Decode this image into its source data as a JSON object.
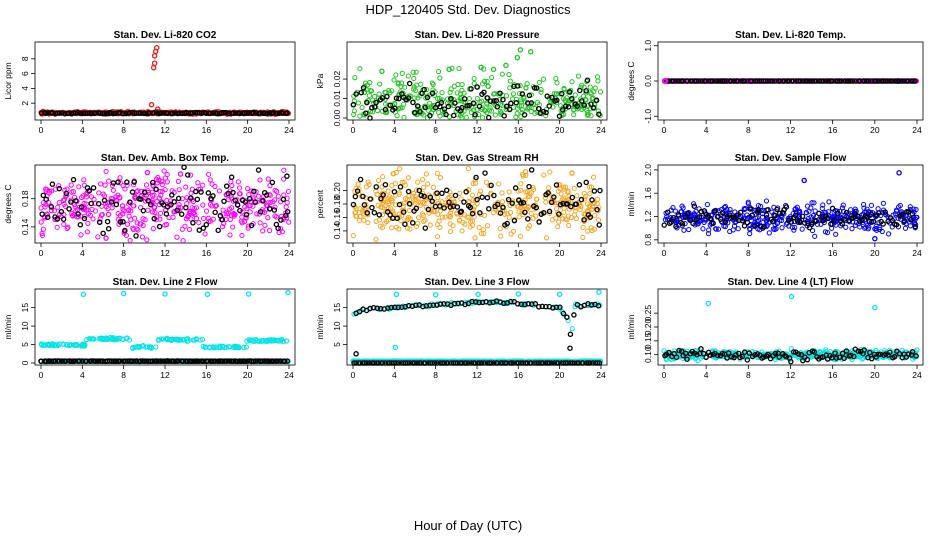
{
  "figure": {
    "title": "HDP_120405  Std. Dev. Diagnostics",
    "xlabel": "Hour of Day (UTC)"
  },
  "chart_data": [
    {
      "type": "scatter",
      "title": "Stan. Dev. Li-820 CO2",
      "ylabel": "Licor ppm",
      "xlim": [
        0,
        24
      ],
      "ylim": [
        0,
        10
      ],
      "xticks": [
        "0",
        "4",
        "8",
        "12",
        "16",
        "20",
        "24"
      ],
      "yticks": [
        "2",
        "4",
        "6",
        "8"
      ],
      "ytick_values": [
        2,
        4,
        6,
        8
      ],
      "series": [
        {
          "color": "#e41a1c",
          "base": 0.7,
          "noise": 0.08,
          "outliers": [
            [
              0.2,
              0.9
            ],
            [
              10.7,
              1.8
            ],
            [
              10.9,
              6.8
            ],
            [
              11.0,
              7.4
            ],
            [
              11.0,
              8.4
            ],
            [
              11.1,
              9.0
            ],
            [
              11.2,
              9.5
            ],
            [
              11.3,
              1.2
            ]
          ]
        },
        {
          "color": "#000000",
          "base": 0.65,
          "noise": 0.04,
          "outliers": []
        }
      ]
    },
    {
      "type": "scatter",
      "title": "Stan. Dev. Li-820 Pressure",
      "ylabel": "kPa",
      "xlim": [
        0,
        24
      ],
      "ylim": [
        0,
        0.038
      ],
      "xticks": [
        "0",
        "4",
        "8",
        "12",
        "16",
        "20",
        "24"
      ],
      "yticks": [
        "0.00",
        "0.01",
        "0.02"
      ],
      "ytick_values": [
        0,
        0.01,
        0.02
      ],
      "series": [
        {
          "color": "#22c322",
          "base": 0.008,
          "noise": 0.007,
          "outliers": [
            [
              2.8,
              0.024
            ],
            [
              9.3,
              0.025
            ],
            [
              12.4,
              0.026
            ],
            [
              13.6,
              0.025
            ],
            [
              14.8,
              0.027
            ],
            [
              15.9,
              0.031
            ],
            [
              16.2,
              0.035
            ],
            [
              17.2,
              0.034
            ]
          ]
        },
        {
          "color": "#000000",
          "base": 0.008,
          "noise": 0.005,
          "outliers": []
        }
      ]
    },
    {
      "type": "scatter",
      "title": "Stan. Dev. Li-820 Temp.",
      "ylabel": "degrees C",
      "xlim": [
        0,
        24
      ],
      "ylim": [
        -1.05,
        1.05
      ],
      "xticks": [
        "0",
        "4",
        "8",
        "12",
        "16",
        "20",
        "24"
      ],
      "yticks": [
        "-1.0",
        "0.0",
        "1.0"
      ],
      "ytick_values": [
        -1,
        0,
        1
      ],
      "series": [
        {
          "color": "#ff00ff",
          "base": 0.0,
          "noise": 0.0,
          "outliers": []
        },
        {
          "color": "#000000",
          "base": 0.0,
          "noise": 0.0,
          "outliers": []
        }
      ]
    },
    {
      "type": "scatter",
      "title": "Stan. Dev. Amb. Box Temp.",
      "ylabel": "degrees C",
      "xlim": [
        0,
        24
      ],
      "ylim": [
        0.12,
        0.225
      ],
      "xticks": [
        "0",
        "4",
        "8",
        "12",
        "16",
        "20",
        "24"
      ],
      "yticks": [
        "0.14",
        "0.18"
      ],
      "ytick_values": [
        0.14,
        0.18
      ],
      "series": [
        {
          "color": "#ff00ff",
          "base": 0.17,
          "noise": 0.022,
          "outliers": [
            [
              10.3,
              0.217
            ],
            [
              13.5,
              0.215
            ],
            [
              6.3,
              0.124
            ]
          ]
        },
        {
          "color": "#000000",
          "base": 0.17,
          "noise": 0.02,
          "outliers": [
            [
              23.8,
              0.212
            ]
          ]
        }
      ]
    },
    {
      "type": "scatter",
      "title": "Stan. Dev. Gas Stream RH",
      "ylabel": "percent",
      "xlim": [
        0,
        24
      ],
      "ylim": [
        0.125,
        0.235
      ],
      "xticks": [
        "0",
        "4",
        "8",
        "12",
        "16",
        "20",
        "24"
      ],
      "yticks": [
        "0.14",
        "0.16",
        "0.18",
        "0.20"
      ],
      "ytick_values": [
        0.14,
        0.16,
        0.18,
        0.2
      ],
      "series": [
        {
          "color": "#f5a623",
          "base": 0.178,
          "noise": 0.022,
          "outliers": [
            [
              3.9,
              0.225
            ],
            [
              16.7,
              0.228
            ],
            [
              21.2,
              0.226
            ]
          ]
        },
        {
          "color": "#000000",
          "base": 0.18,
          "noise": 0.017,
          "outliers": [
            [
              23.9,
              0.2
            ]
          ]
        }
      ]
    },
    {
      "type": "scatter",
      "title": "Stan. Dev. Sample Flow",
      "ylabel": "ml/min",
      "xlim": [
        0,
        24
      ],
      "ylim": [
        0.78,
        2.05
      ],
      "xticks": [
        "0",
        "4",
        "8",
        "12",
        "16",
        "20",
        "24"
      ],
      "yticks": [
        "0.8",
        "1.2",
        "1.6",
        "2.0"
      ],
      "ytick_values": [
        0.8,
        1.2,
        1.6,
        2.0
      ],
      "series": [
        {
          "color": "#0000ff",
          "base": 1.18,
          "noise": 0.12,
          "outliers": [
            [
              13.3,
              1.82
            ],
            [
              22.3,
              1.95
            ],
            [
              20.0,
              0.82
            ]
          ]
        },
        {
          "color": "#000000",
          "base": 1.18,
          "noise": 0.08,
          "outliers": []
        }
      ]
    },
    {
      "type": "scatter",
      "title": "Stan. Dev. Line 2 Flow",
      "ylabel": "ml/min",
      "xlim": [
        0,
        24
      ],
      "ylim": [
        0,
        19.5
      ],
      "xticks": [
        "0",
        "4",
        "8",
        "12",
        "16",
        "20",
        "24"
      ],
      "yticks": [
        "0",
        "5",
        "10",
        "15"
      ],
      "ytick_values": [
        0,
        5,
        10,
        15
      ],
      "segments": [
        [
          0,
          4.3,
          4.9
        ],
        [
          4.3,
          8.6,
          6.6
        ],
        [
          8.6,
          11.2,
          4.3
        ],
        [
          11.2,
          15.7,
          6.3
        ],
        [
          15.7,
          19.9,
          4.3
        ],
        [
          19.9,
          24,
          6.1
        ]
      ],
      "series": [
        {
          "color": "#00e5e5",
          "base": 0.5,
          "noise": 0.05,
          "outliers": [
            [
              4.1,
              18.6
            ],
            [
              8.0,
              18.8
            ],
            [
              12.0,
              18.7
            ],
            [
              16.1,
              18.6
            ],
            [
              20.1,
              18.7
            ],
            [
              23.9,
              19.1
            ]
          ]
        },
        {
          "color": "#000000",
          "base": 0.5,
          "noise": 0.03,
          "outliers": []
        }
      ]
    },
    {
      "type": "scatter",
      "title": "Stan. Dev. Line 3 Flow",
      "ylabel": "ml/min",
      "xlim": [
        0,
        24
      ],
      "ylim": [
        0,
        19.5
      ],
      "xticks": [
        "0",
        "4",
        "8",
        "12",
        "16",
        "20",
        "24"
      ],
      "yticks": [
        "5",
        "10",
        "15"
      ],
      "ytick_values": [
        5,
        10,
        15
      ],
      "curve": [
        [
          0,
          13.2
        ],
        [
          1,
          14.3
        ],
        [
          3,
          14.8
        ],
        [
          5,
          15.3
        ],
        [
          8,
          15.8
        ],
        [
          12,
          16.4
        ],
        [
          13.2,
          16.6
        ],
        [
          16,
          16.1
        ],
        [
          18,
          15.6
        ],
        [
          20,
          14.8
        ],
        [
          20.6,
          12.6
        ],
        [
          20.9,
          11.0
        ],
        [
          21.1,
          6.5
        ],
        [
          21.5,
          15.7
        ],
        [
          24,
          15.7
        ]
      ],
      "series": [
        {
          "color": "#00e5e5",
          "base": 0.5,
          "noise": 0.03,
          "outliers": [
            [
              4.2,
              18.6
            ],
            [
              8.0,
              18.5
            ],
            [
              12.1,
              18.6
            ],
            [
              16.0,
              18.7
            ],
            [
              20.0,
              18.6
            ],
            [
              23.8,
              19.2
            ],
            [
              4.1,
              4.2
            ]
          ]
        },
        {
          "color": "#000000",
          "base": 0,
          "noise": 0,
          "outliers": [
            [
              0.3,
              2.5
            ],
            [
              21.0,
              4.0
            ]
          ]
        }
      ]
    },
    {
      "type": "scatter",
      "title": "Stan. Dev. Line 4 (LT) Flow",
      "ylabel": "ml/min",
      "xlim": [
        0,
        24
      ],
      "ylim": [
        0.07,
        0.33
      ],
      "xticks": [
        "0",
        "4",
        "8",
        "12",
        "16",
        "20",
        "24"
      ],
      "yticks": [
        "0.10",
        "0.15",
        "0.20",
        "0.25"
      ],
      "ytick_values": [
        0.1,
        0.15,
        0.2,
        0.25
      ],
      "series": [
        {
          "color": "#00e5e5",
          "base": 0.1,
          "noise": 0.008,
          "outliers": [
            [
              4.2,
              0.285
            ],
            [
              12.1,
              0.31
            ],
            [
              20.0,
              0.27
            ]
          ]
        },
        {
          "color": "#000000",
          "base": 0.1,
          "noise": 0.01,
          "outliers": []
        }
      ]
    }
  ]
}
